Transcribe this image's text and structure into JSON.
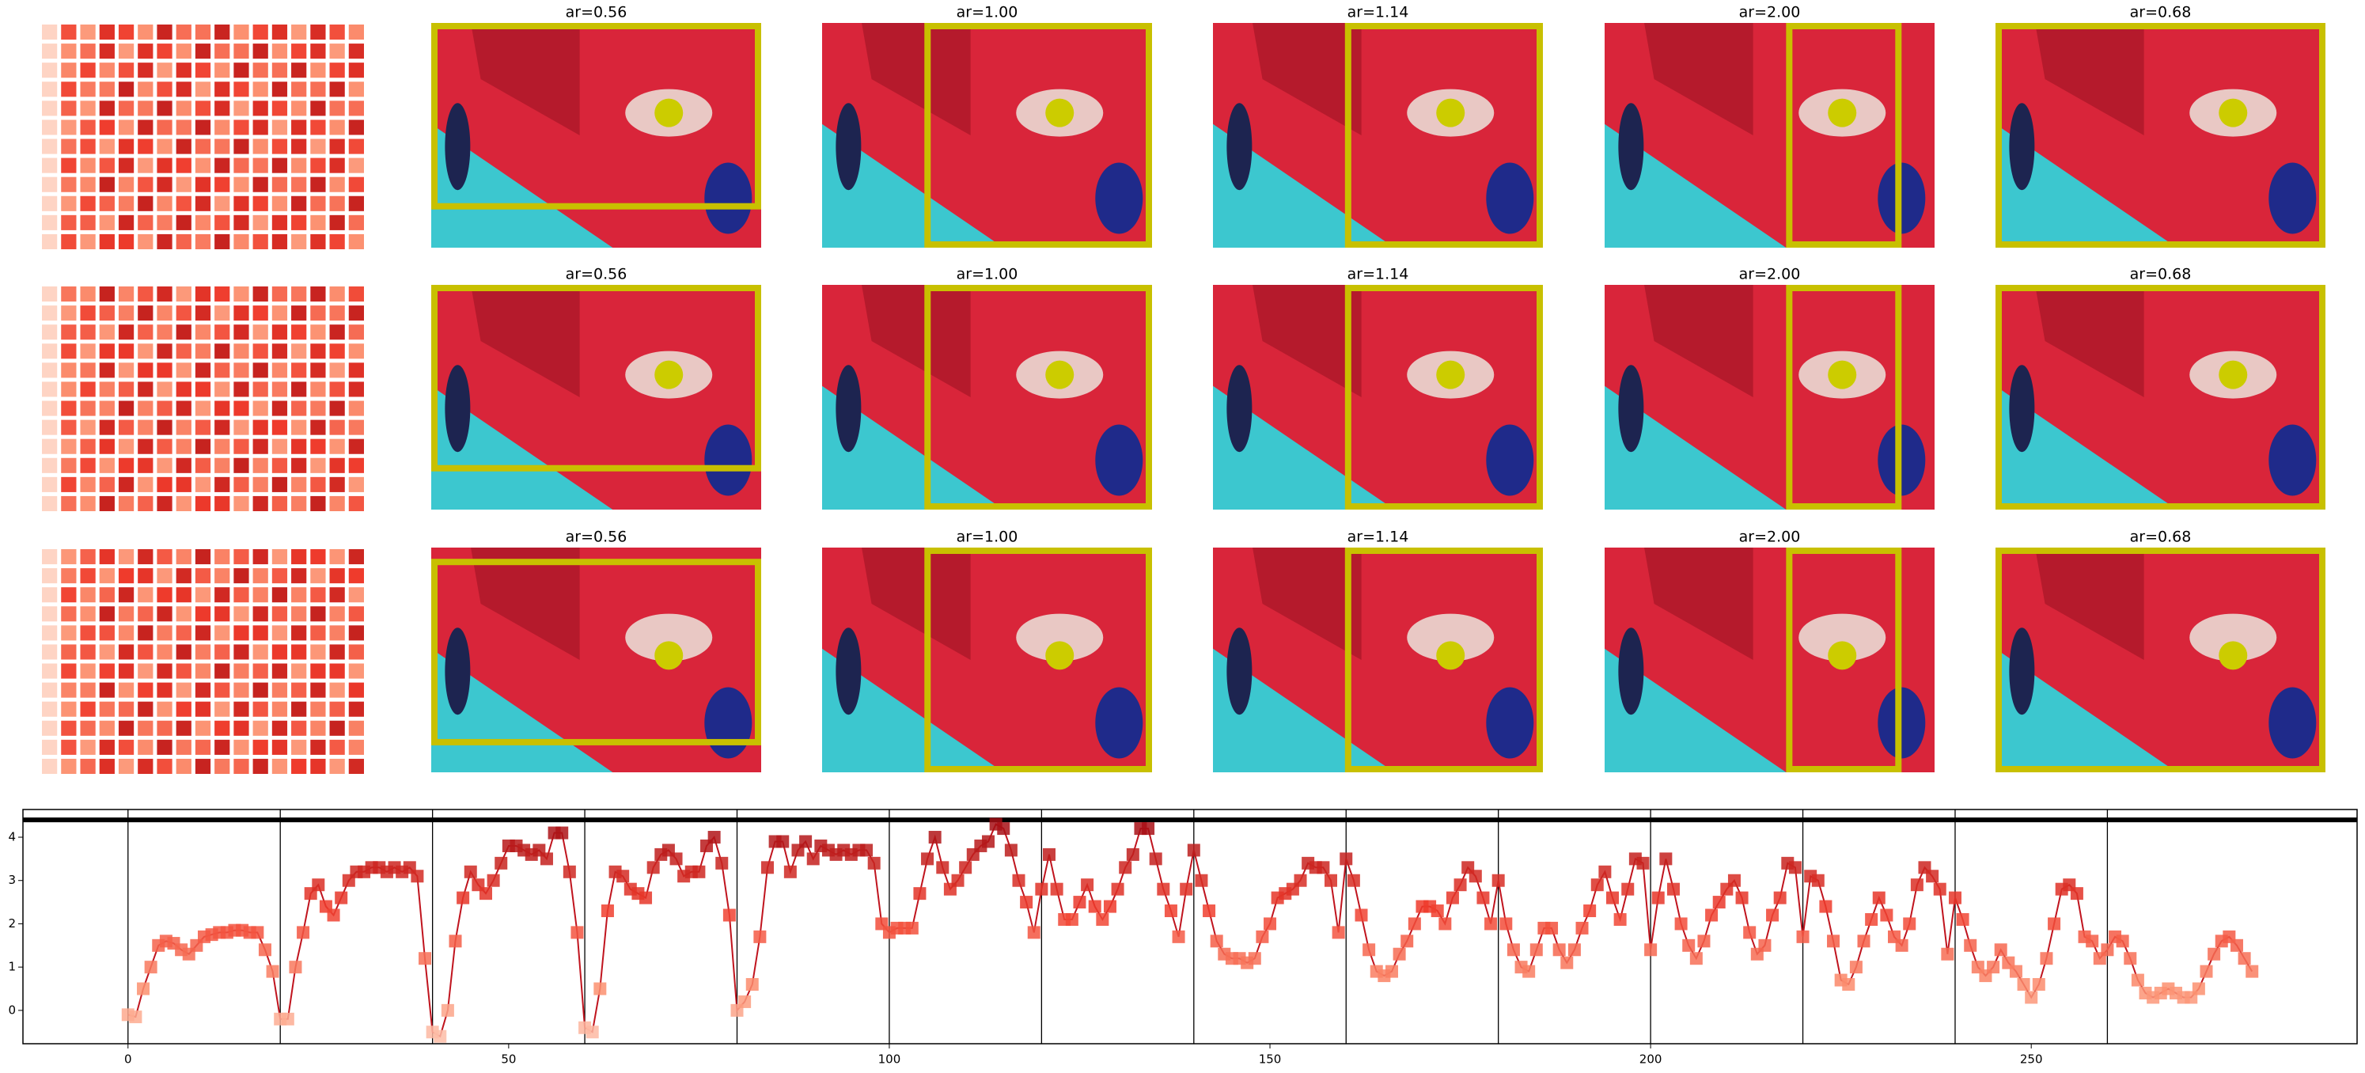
{
  "panels": {
    "titles": [
      [
        "ar=0.56",
        "ar=1.00",
        "ar=1.14",
        "ar=2.00",
        "ar=0.68"
      ],
      [
        "ar=0.56",
        "ar=1.00",
        "ar=1.14",
        "ar=2.00",
        "ar=0.68"
      ],
      [
        "ar=0.56",
        "ar=1.00",
        "ar=1.14",
        "ar=2.00",
        "ar=0.68"
      ]
    ]
  },
  "chart_data": {
    "type": "line",
    "line_color": "#c0141e",
    "marker": "square",
    "xlim": [
      -13.8,
      292.8
    ],
    "ylim": [
      -0.77,
      4.64
    ],
    "xticks": [
      0,
      50,
      100,
      150,
      200,
      250
    ],
    "yticks": [
      0,
      1,
      2,
      3,
      4
    ],
    "vlines": [
      0,
      20,
      40,
      60,
      80,
      100,
      120,
      140,
      160,
      180,
      200,
      220,
      240,
      260
    ],
    "hline": 4.4,
    "x": [
      0,
      1,
      2,
      3,
      4,
      5,
      6,
      7,
      8,
      9,
      10,
      11,
      12,
      13,
      14,
      15,
      16,
      17,
      18,
      19,
      20,
      21,
      22,
      23,
      24,
      25,
      26,
      27,
      28,
      29,
      30,
      31,
      32,
      33,
      34,
      35,
      36,
      37,
      38,
      39,
      40,
      41,
      42,
      43,
      44,
      45,
      46,
      47,
      48,
      49,
      50,
      51,
      52,
      53,
      54,
      55,
      56,
      57,
      58,
      59,
      60,
      61,
      62,
      63,
      64,
      65,
      66,
      67,
      68,
      69,
      70,
      71,
      72,
      73,
      74,
      75,
      76,
      77,
      78,
      79,
      80,
      81,
      82,
      83,
      84,
      85,
      86,
      87,
      88,
      89,
      90,
      91,
      92,
      93,
      94,
      95,
      96,
      97,
      98,
      99,
      100,
      101,
      102,
      103,
      104,
      105,
      106,
      107,
      108,
      109,
      110,
      111,
      112,
      113,
      114,
      115,
      116,
      117,
      118,
      119,
      120,
      121,
      122,
      123,
      124,
      125,
      126,
      127,
      128,
      129,
      130,
      131,
      132,
      133,
      134,
      135,
      136,
      137,
      138,
      139,
      140,
      141,
      142,
      143,
      144,
      145,
      146,
      147,
      148,
      149,
      150,
      151,
      152,
      153,
      154,
      155,
      156,
      157,
      158,
      159,
      160,
      161,
      162,
      163,
      164,
      165,
      166,
      167,
      168,
      169,
      170,
      171,
      172,
      173,
      174,
      175,
      176,
      177,
      178,
      179,
      180,
      181,
      182,
      183,
      184,
      185,
      186,
      187,
      188,
      189,
      190,
      191,
      192,
      193,
      194,
      195,
      196,
      197,
      198,
      199,
      200,
      201,
      202,
      203,
      204,
      205,
      206,
      207,
      208,
      209,
      210,
      211,
      212,
      213,
      214,
      215,
      216,
      217,
      218,
      219,
      220,
      221,
      222,
      223,
      224,
      225,
      226,
      227,
      228,
      229,
      230,
      231,
      232,
      233,
      234,
      235,
      236,
      237,
      238,
      239,
      240,
      241,
      242,
      243,
      244,
      245,
      246,
      247,
      248,
      249,
      250,
      251,
      252,
      253,
      254,
      255,
      256,
      257,
      258,
      259,
      260,
      261,
      262,
      263,
      264,
      265,
      266,
      267,
      268,
      269,
      270,
      271,
      272,
      273,
      274,
      275,
      276,
      277,
      278,
      279
    ],
    "values": [
      -0.1,
      -0.15,
      0.5,
      1.0,
      1.5,
      1.6,
      1.55,
      1.4,
      1.3,
      1.5,
      1.7,
      1.75,
      1.8,
      1.8,
      1.85,
      1.85,
      1.8,
      1.8,
      1.4,
      0.9,
      -0.2,
      -0.2,
      1.0,
      1.8,
      2.7,
      2.9,
      2.4,
      2.2,
      2.6,
      3.0,
      3.2,
      3.2,
      3.3,
      3.3,
      3.2,
      3.3,
      3.2,
      3.3,
      3.1,
      1.2,
      -0.5,
      -0.6,
      0.0,
      1.6,
      2.6,
      3.2,
      2.9,
      2.7,
      3.0,
      3.4,
      3.8,
      3.8,
      3.7,
      3.6,
      3.7,
      3.5,
      4.1,
      4.1,
      3.2,
      1.8,
      -0.4,
      -0.5,
      0.5,
      2.3,
      3.2,
      3.1,
      2.8,
      2.7,
      2.6,
      3.3,
      3.6,
      3.7,
      3.5,
      3.1,
      3.2,
      3.2,
      3.8,
      4.0,
      3.4,
      2.2,
      0.0,
      0.2,
      0.6,
      1.7,
      3.3,
      3.9,
      3.9,
      3.2,
      3.7,
      3.9,
      3.5,
      3.8,
      3.7,
      3.6,
      3.7,
      3.6,
      3.7,
      3.7,
      3.4,
      2.0,
      1.8,
      1.9,
      1.9,
      1.9,
      2.7,
      3.5,
      4.0,
      3.3,
      2.8,
      3.0,
      3.3,
      3.6,
      3.8,
      3.9,
      4.3,
      4.2,
      3.7,
      3.0,
      2.5,
      1.8,
      2.8,
      3.6,
      2.8,
      2.1,
      2.1,
      2.5,
      2.9,
      2.4,
      2.1,
      2.4,
      2.8,
      3.3,
      3.6,
      4.2,
      4.2,
      3.5,
      2.8,
      2.3,
      1.7,
      2.8,
      3.7,
      3.0,
      2.3,
      1.6,
      1.3,
      1.2,
      1.2,
      1.1,
      1.2,
      1.7,
      2.0,
      2.6,
      2.7,
      2.8,
      3.0,
      3.4,
      3.3,
      3.3,
      3.0,
      1.8,
      3.5,
      3.0,
      2.2,
      1.4,
      0.9,
      0.8,
      0.9,
      1.3,
      1.6,
      2.0,
      2.4,
      2.4,
      2.3,
      2.0,
      2.6,
      2.9,
      3.3,
      3.1,
      2.6,
      2.0,
      3.0,
      2.0,
      1.4,
      1.0,
      0.9,
      1.4,
      1.9,
      1.9,
      1.4,
      1.1,
      1.4,
      1.9,
      2.3,
      2.9,
      3.2,
      2.6,
      2.1,
      2.8,
      3.5,
      3.4,
      1.4,
      2.6,
      3.5,
      2.8,
      2.0,
      1.5,
      1.2,
      1.6,
      2.2,
      2.5,
      2.8,
      3.0,
      2.6,
      1.8,
      1.3,
      1.5,
      2.2,
      2.6,
      3.4,
      3.3,
      1.7,
      3.1,
      3.0,
      2.4,
      1.6,
      0.7,
      0.6,
      1.0,
      1.6,
      2.1,
      2.6,
      2.2,
      1.7,
      1.5,
      2.0,
      2.9,
      3.3,
      3.1,
      2.8,
      1.3,
      2.6,
      2.1,
      1.5,
      1.0,
      0.8,
      1.0,
      1.4,
      1.1,
      0.9,
      0.6,
      0.3,
      0.6,
      1.2,
      2.0,
      2.8,
      2.9,
      2.7,
      1.7,
      1.6,
      1.2,
      1.4,
      1.7,
      1.6,
      1.2,
      0.7,
      0.4,
      0.3,
      0.4,
      0.5,
      0.4,
      0.3,
      0.3,
      0.5,
      0.9,
      1.3,
      1.6,
      1.7,
      1.5,
      1.2,
      0.9
    ]
  }
}
